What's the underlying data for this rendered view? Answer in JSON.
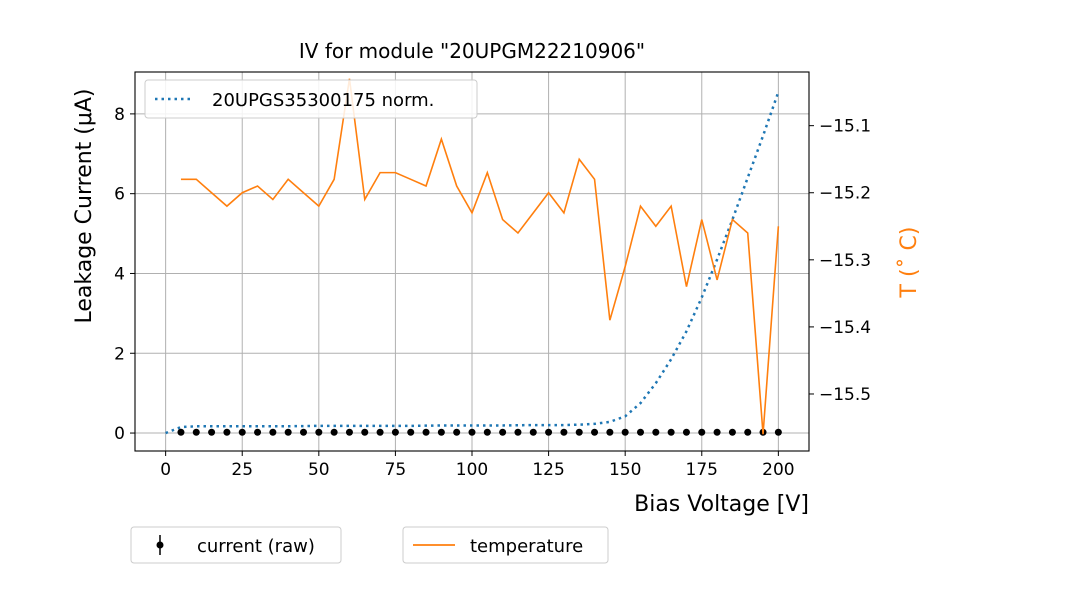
{
  "chart_data": {
    "type": "line",
    "title": "IV for module \"20UPGM22210906\"",
    "xlabel": "Bias Voltage [V]",
    "ylabel": "Leakage Current (μA)",
    "y2label": "T ($^\\circ$C)",
    "y2label_display": "T (˚ C)",
    "xlim": [
      -10,
      210
    ],
    "ylim": [
      -0.45,
      9.05
    ],
    "y2lim": [
      -15.585,
      -15.02
    ],
    "xticks": [
      0,
      25,
      50,
      75,
      100,
      125,
      150,
      175,
      200
    ],
    "yticks": [
      0,
      2,
      4,
      6,
      8
    ],
    "y2ticks": [
      -15.1,
      -15.2,
      -15.3,
      -15.4,
      -15.5
    ],
    "y2tick_labels": [
      "−15.1",
      "−15.2",
      "−15.3",
      "−15.4",
      "−15.5"
    ],
    "grid": true,
    "colors": {
      "temperature": "#ff7f0e",
      "reference": "#1f77b4",
      "current": "#000000",
      "y2label": "#ff7f0e"
    },
    "series": [
      {
        "name": "20UPGS35300175 norm.",
        "axis": "left",
        "style": "dotted",
        "x": [
          0,
          5,
          10,
          20,
          30,
          40,
          50,
          60,
          70,
          80,
          90,
          100,
          110,
          120,
          130,
          135,
          140,
          145,
          150,
          155,
          160,
          165,
          170,
          175,
          180,
          185,
          190,
          195,
          200
        ],
        "y": [
          0.0,
          0.15,
          0.17,
          0.17,
          0.17,
          0.17,
          0.18,
          0.18,
          0.18,
          0.18,
          0.19,
          0.19,
          0.19,
          0.2,
          0.2,
          0.21,
          0.23,
          0.28,
          0.42,
          0.75,
          1.25,
          1.85,
          2.55,
          3.4,
          4.35,
          5.35,
          6.4,
          7.45,
          8.55
        ]
      },
      {
        "name": "current (raw)",
        "axis": "left",
        "style": "points",
        "x": [
          5,
          10,
          15,
          20,
          25,
          30,
          35,
          40,
          45,
          50,
          55,
          60,
          65,
          70,
          75,
          80,
          85,
          90,
          95,
          100,
          105,
          110,
          115,
          120,
          125,
          130,
          135,
          140,
          145,
          150,
          155,
          160,
          165,
          170,
          175,
          180,
          185,
          190,
          195,
          200
        ],
        "y": [
          0.02,
          0.02,
          0.02,
          0.02,
          0.02,
          0.02,
          0.02,
          0.02,
          0.02,
          0.02,
          0.02,
          0.02,
          0.02,
          0.02,
          0.02,
          0.02,
          0.02,
          0.02,
          0.02,
          0.02,
          0.02,
          0.02,
          0.02,
          0.02,
          0.02,
          0.02,
          0.02,
          0.02,
          0.02,
          0.02,
          0.02,
          0.02,
          0.02,
          0.02,
          0.02,
          0.02,
          0.02,
          0.02,
          0.02,
          0.02
        ]
      },
      {
        "name": "temperature",
        "axis": "right",
        "style": "line",
        "x": [
          5,
          10,
          15,
          20,
          25,
          30,
          35,
          40,
          45,
          50,
          55,
          60,
          65,
          70,
          75,
          80,
          85,
          90,
          95,
          100,
          105,
          110,
          115,
          120,
          125,
          130,
          135,
          140,
          145,
          150,
          155,
          160,
          165,
          170,
          175,
          180,
          185,
          190,
          195,
          200
        ],
        "y": [
          -15.18,
          -15.18,
          -15.2,
          -15.22,
          -15.2,
          -15.19,
          -15.21,
          -15.18,
          -15.2,
          -15.22,
          -15.18,
          -15.03,
          -15.21,
          -15.17,
          -15.17,
          -15.18,
          -15.19,
          -15.12,
          -15.19,
          -15.23,
          -15.17,
          -15.24,
          -15.26,
          -15.23,
          -15.2,
          -15.23,
          -15.15,
          -15.18,
          -15.39,
          -15.31,
          -15.22,
          -15.25,
          -15.22,
          -15.34,
          -15.24,
          -15.33,
          -15.24,
          -15.26,
          -15.56,
          -15.25
        ]
      }
    ],
    "legends": [
      {
        "location": "upper-left",
        "entries": [
          "20UPGS35300175 norm."
        ]
      },
      {
        "location": "below-left",
        "entries": [
          "current (raw)"
        ]
      },
      {
        "location": "below-center",
        "entries": [
          "temperature"
        ]
      }
    ]
  }
}
